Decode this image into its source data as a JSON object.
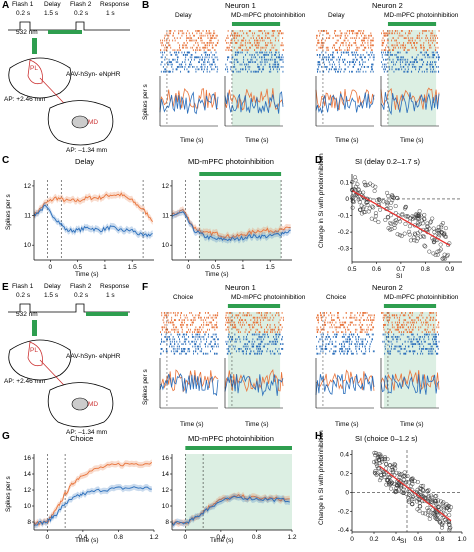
{
  "figure": {
    "panels": {
      "A": {
        "label": "A",
        "timeline": [
          "Flash 1",
          "Delay",
          "Flash 2",
          "Response"
        ],
        "durations": [
          "0.2 s",
          "1.5 s",
          "0.2 s",
          "1 s"
        ],
        "wavelength": "532 nm",
        "regions": [
          "PL",
          "MD"
        ],
        "virus": "AAV-hSyn- eNpHR",
        "ap1": "AP: +2.46 mm",
        "ap2": "AP: –1.34 mm"
      },
      "B": {
        "label": "B",
        "neuron1": "Neuron 1",
        "neuron2": "Neuron 2",
        "cond1": "Delay",
        "cond2": "MD-mPFC photoinhibition",
        "ylabel": "Spikes per s",
        "xlabel": "Time (s)"
      },
      "C": {
        "label": "C",
        "cond1": "Delay",
        "cond2": "MD-mPFC photoinhibition",
        "ylabel": "Spikes per s",
        "xlabel": "Time (s)"
      },
      "D": {
        "label": "D",
        "title": "SI (delay 0.2–1.7 s)",
        "ylabel": "Change in SI with photoinhibition",
        "xlabel": "SI"
      },
      "E": {
        "label": "E",
        "timeline": [
          "Flash 1",
          "Delay",
          "Flash 2",
          "Response"
        ],
        "durations": [
          "0.2 s",
          "1.5 s",
          "0.2 s",
          "1 s"
        ],
        "wavelength": "532 nm",
        "regions": [
          "PL",
          "MD"
        ],
        "virus": "AAV-hSyn- eNpHR",
        "ap1": "AP: +2.46 mm",
        "ap2": "AP: –1.34 mm"
      },
      "F": {
        "label": "F",
        "neuron1": "Neuron 1",
        "neuron2": "Neuron 2",
        "cond1": "Choice",
        "cond2": "MD-mPFC photoinhibition",
        "ylabel": "Spikes per s",
        "xlabel": "Time (s)"
      },
      "G": {
        "label": "G",
        "cond1": "Choice",
        "cond2": "MD-mPFC photoinhibition",
        "ylabel": "Spikes per s",
        "xlabel": "Time (s)"
      },
      "H": {
        "label": "H",
        "title": "SI (choice 0–1.2 s)",
        "ylabel": "Change in SI with photoinhibition",
        "xlabel": "SI"
      }
    },
    "colors": {
      "orange": "#e8743b",
      "blue": "#2a6ebb",
      "green": "#2e9e4f",
      "shade": "#dcefe3",
      "gray": "#888888"
    }
  },
  "chart_data": [
    {
      "panel": "C-left",
      "type": "line",
      "title": "Delay",
      "xlabel": "Time (s)",
      "ylabel": "Spikes per s",
      "xlim": [
        -0.3,
        1.9
      ],
      "ylim": [
        9.5,
        12.2
      ],
      "xticks": [
        "0",
        "0.5",
        "1",
        "1.5"
      ],
      "yticks": [
        "10",
        "11",
        "12"
      ],
      "series": [
        {
          "x": [
            -0.3,
            -0.1,
            0.1,
            0.3,
            0.5,
            0.7,
            0.9,
            1.1,
            1.3,
            1.5,
            1.7,
            1.9
          ],
          "values": [
            11.0,
            11.4,
            11.6,
            11.5,
            11.5,
            11.6,
            11.6,
            11.7,
            11.7,
            11.5,
            11.2,
            10.8
          ]
        },
        {
          "x": [
            -0.3,
            -0.1,
            0.1,
            0.3,
            0.5,
            0.7,
            0.9,
            1.1,
            1.3,
            1.5,
            1.7,
            1.9
          ],
          "values": [
            11.0,
            11.3,
            10.9,
            10.5,
            10.5,
            10.6,
            10.5,
            10.6,
            10.5,
            10.5,
            10.3,
            10.4
          ]
        }
      ]
    },
    {
      "panel": "C-right",
      "type": "line",
      "title": "MD-mPFC photoinhibition",
      "xlabel": "Time (s)",
      "ylabel": "Spikes per s",
      "xlim": [
        -0.3,
        1.9
      ],
      "ylim": [
        9.5,
        12.2
      ],
      "xticks": [
        "0",
        "0.5",
        "1",
        "1.5"
      ],
      "yticks": [
        "10",
        "11",
        "12"
      ],
      "series": [
        {
          "x": [
            -0.3,
            -0.1,
            0.1,
            0.3,
            0.5,
            0.7,
            0.9,
            1.1,
            1.3,
            1.5,
            1.7,
            1.9
          ],
          "values": [
            11.0,
            11.2,
            10.6,
            10.4,
            10.4,
            10.3,
            10.3,
            10.4,
            10.5,
            10.5,
            10.5,
            10.6
          ]
        },
        {
          "x": [
            -0.3,
            -0.1,
            0.1,
            0.3,
            0.5,
            0.7,
            0.9,
            1.1,
            1.3,
            1.5,
            1.7,
            1.9
          ],
          "values": [
            11.0,
            11.1,
            10.5,
            10.3,
            10.2,
            10.2,
            10.2,
            10.3,
            10.3,
            10.3,
            10.4,
            10.5
          ]
        }
      ]
    },
    {
      "panel": "G-left",
      "type": "line",
      "title": "Choice",
      "xlabel": "Time (s)",
      "ylabel": "Spikes per s",
      "xlim": [
        -0.15,
        1.2
      ],
      "ylim": [
        7,
        16.5
      ],
      "xticks": [
        "0",
        "0.4",
        "0.8",
        "1.2"
      ],
      "yticks": [
        "8",
        "10",
        "12",
        "14",
        "16"
      ],
      "series": [
        {
          "x": [
            -0.15,
            0,
            0.1,
            0.2,
            0.3,
            0.4,
            0.6,
            0.8,
            1.0,
            1.2
          ],
          "values": [
            7.8,
            8.0,
            9.5,
            11.5,
            13.0,
            14.0,
            14.8,
            15.2,
            15.3,
            15.4
          ]
        },
        {
          "x": [
            -0.15,
            0,
            0.1,
            0.2,
            0.3,
            0.4,
            0.6,
            0.8,
            1.0,
            1.2
          ],
          "values": [
            7.8,
            8.0,
            9.0,
            10.3,
            11.0,
            11.5,
            12.0,
            12.2,
            12.3,
            12.2
          ]
        }
      ]
    },
    {
      "panel": "G-right",
      "type": "line",
      "title": "MD-mPFC photoinhibition",
      "xlabel": "Time (s)",
      "ylabel": "Spikes per s",
      "xlim": [
        -0.15,
        1.2
      ],
      "ylim": [
        7,
        16.5
      ],
      "xticks": [
        "0",
        "0.4",
        "0.8",
        "1.2"
      ],
      "yticks": [
        "8",
        "10",
        "12",
        "14",
        "16"
      ],
      "series": [
        {
          "x": [
            -0.15,
            0,
            0.1,
            0.2,
            0.3,
            0.4,
            0.6,
            0.8,
            1.0,
            1.2
          ],
          "values": [
            7.8,
            7.9,
            8.5,
            9.3,
            10.2,
            10.8,
            11.2,
            11.0,
            10.9,
            10.8
          ]
        },
        {
          "x": [
            -0.15,
            0,
            0.1,
            0.2,
            0.3,
            0.4,
            0.6,
            0.8,
            1.0,
            1.2
          ],
          "values": [
            7.8,
            7.9,
            8.4,
            9.2,
            10.0,
            10.6,
            11.1,
            10.9,
            10.8,
            10.7
          ]
        }
      ]
    },
    {
      "panel": "D",
      "type": "scatter",
      "title": "SI (delay 0.2–1.7 s)",
      "xlabel": "SI",
      "ylabel": "Change in SI with photoinhibition",
      "xlim": [
        0.5,
        0.95
      ],
      "ylim": [
        -0.38,
        0.15
      ],
      "xticks": [
        "0.5",
        "0.6",
        "0.7",
        "0.8",
        "0.9"
      ],
      "yticks": [
        "0.1",
        "0",
        "-0.1",
        "-0.2",
        "-0.3"
      ],
      "fit": {
        "x": [
          0.5,
          0.9
        ],
        "y": [
          0.05,
          -0.28
        ]
      }
    },
    {
      "panel": "H",
      "type": "scatter",
      "title": "SI (choice 0–1.2 s)",
      "xlabel": "SI",
      "ylabel": "Change in SI with photoinhibition",
      "xlim": [
        0,
        1
      ],
      "ylim": [
        -0.42,
        0.45
      ],
      "xticks": [
        "0",
        "0.2",
        "0.4",
        "0.6",
        "0.8",
        "1.0"
      ],
      "yticks": [
        "0.4",
        "0.2",
        "0",
        "-0.2",
        "-0.4"
      ],
      "fit": {
        "x": [
          0.25,
          0.9
        ],
        "y": [
          0.28,
          -0.3
        ]
      }
    }
  ]
}
